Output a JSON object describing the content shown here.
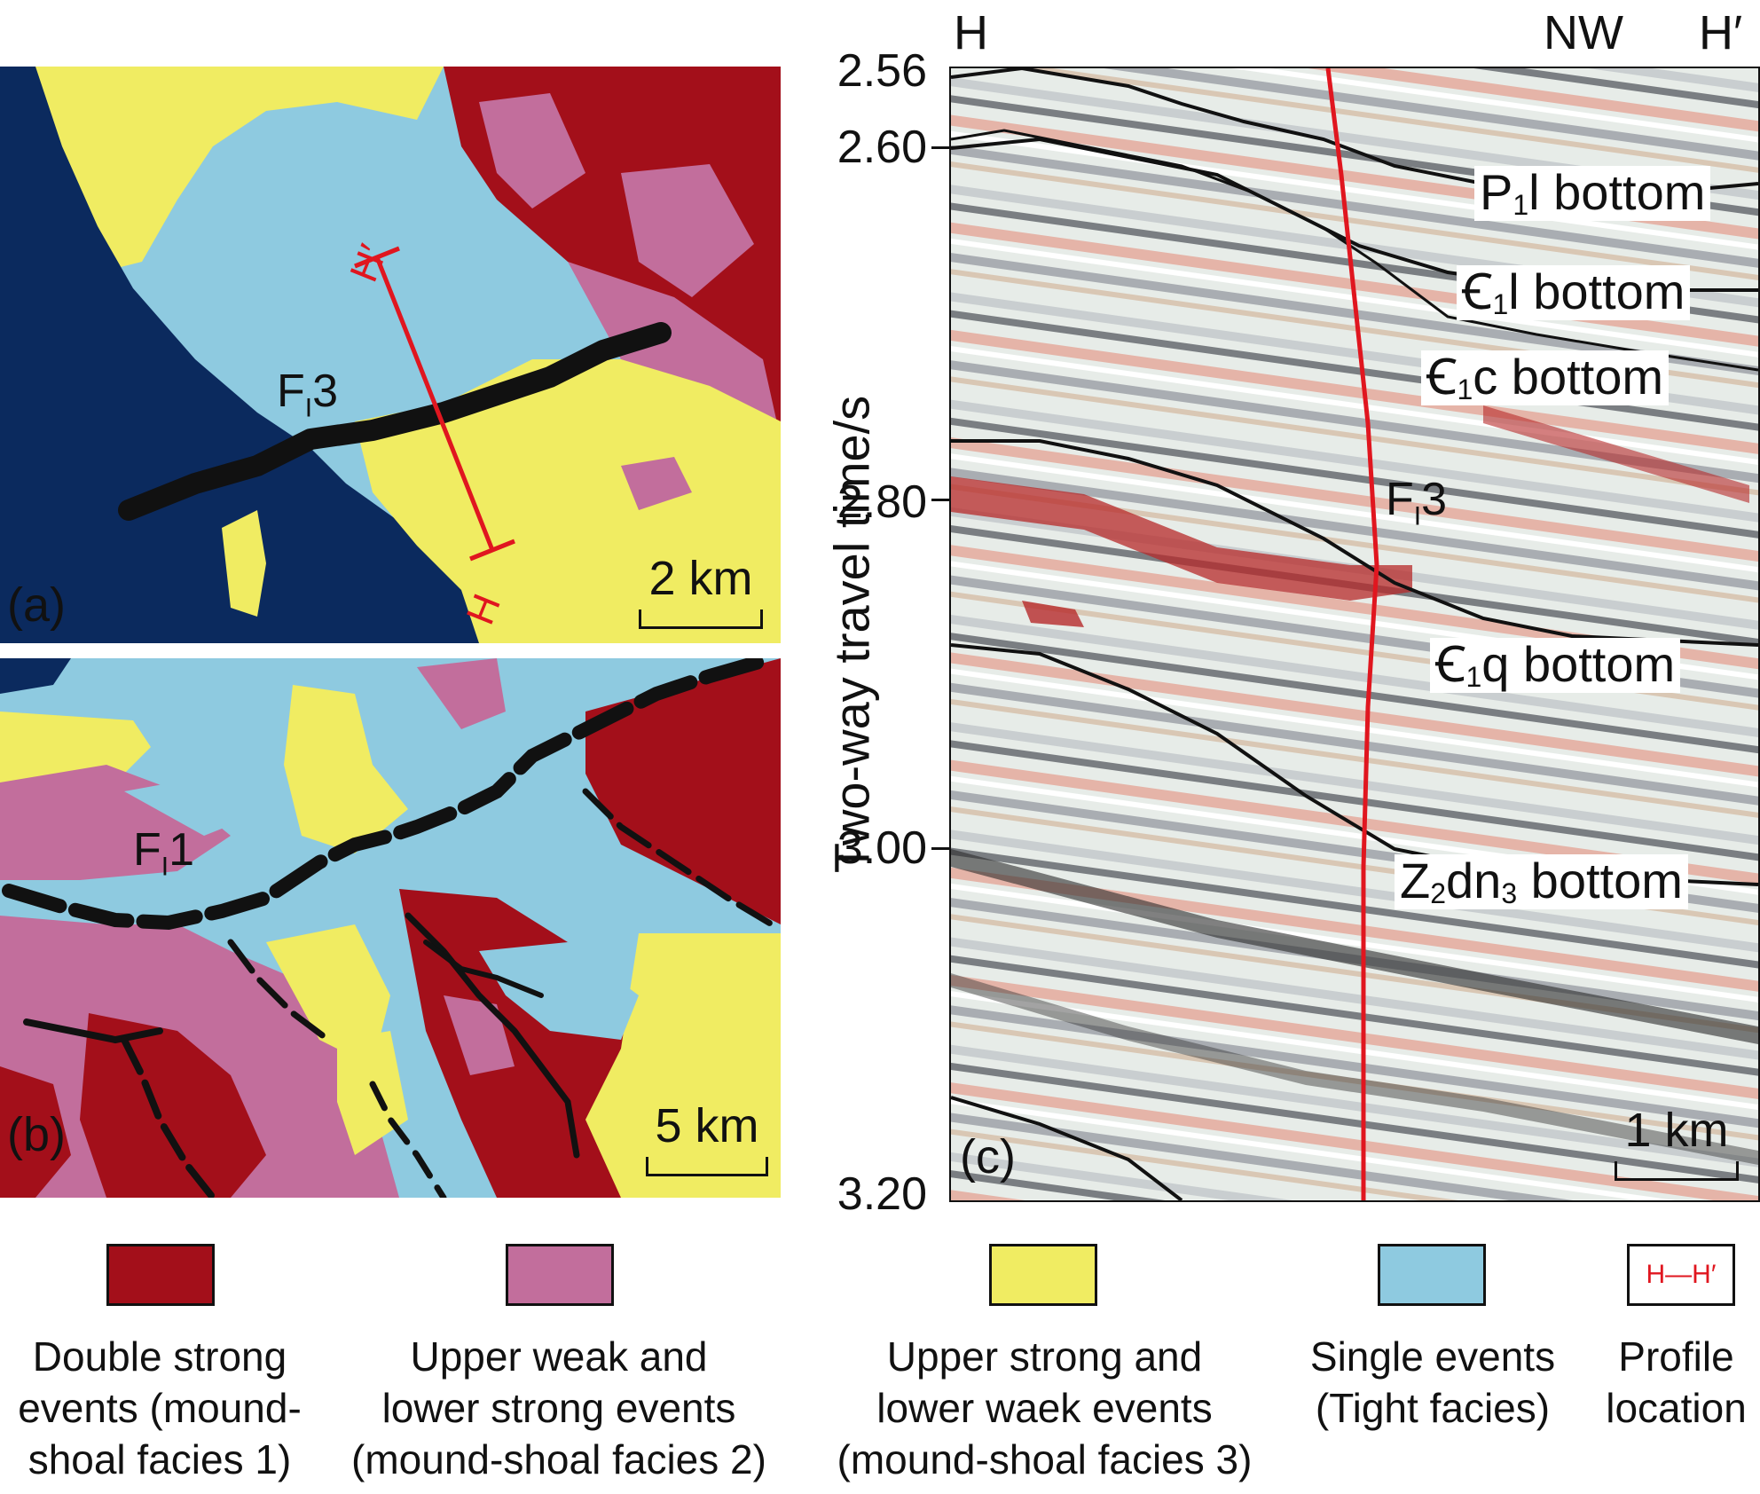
{
  "panels": {
    "a": {
      "letter": "(a)",
      "scale_label": "2 km",
      "fault": {
        "main": "F",
        "sub": "I",
        "num": "3"
      },
      "profile_start": "H",
      "profile_end": "H′"
    },
    "b": {
      "letter": "(b)",
      "scale_label": "5 km",
      "fault": {
        "main": "F",
        "sub": "I",
        "num": "1"
      }
    },
    "c": {
      "letter": "(c)",
      "scale_label": "1 km",
      "fault": {
        "main": "F",
        "sub": "I",
        "num": "3"
      },
      "left_label": "H",
      "direction_label": "NW",
      "right_label": "H′",
      "y_axis_label": "Two-way travel time/s",
      "y_ticks": [
        "2.56",
        "2.60",
        "2.80",
        "3.00",
        "3.20"
      ],
      "horizons": [
        {
          "pre": "P",
          "sub": "1",
          "post": "l bottom"
        },
        {
          "pre": "Ꞓ",
          "sub": "1",
          "post": "l bottom"
        },
        {
          "pre": "Ꞓ",
          "sub": "1",
          "post": "c bottom"
        },
        {
          "pre": "Ꞓ",
          "sub": "1",
          "post": "q bottom"
        },
        {
          "pre": "Z",
          "sub": "2",
          "mid": "dn",
          "sub2": "3",
          "post": " bottom"
        }
      ]
    }
  },
  "legend": [
    {
      "color": "#a30f1a",
      "text": "Double strong\nevents (mound-\nshoal facies 1)"
    },
    {
      "color": "#c26e9c",
      "text": "Upper weak and\nlower strong events\n(mound-shoal facies 2)"
    },
    {
      "color": "#f0ec62",
      "text": "Upper strong and\nlower waek events\n(mound-shoal facies 3)"
    },
    {
      "color": "#8ecae0",
      "text": "Single events\n(Tight facies)"
    },
    {
      "color": "#ffffff",
      "text": "Profile\nlocation",
      "icon": "H—H′"
    }
  ],
  "colors": {
    "dark_blue": "#0b2a5e",
    "light_blue": "#8ecae0",
    "yellow": "#f0ec62",
    "pink": "#c26e9c",
    "dark_red": "#a30f1a",
    "fault_red": "#e0161f"
  }
}
